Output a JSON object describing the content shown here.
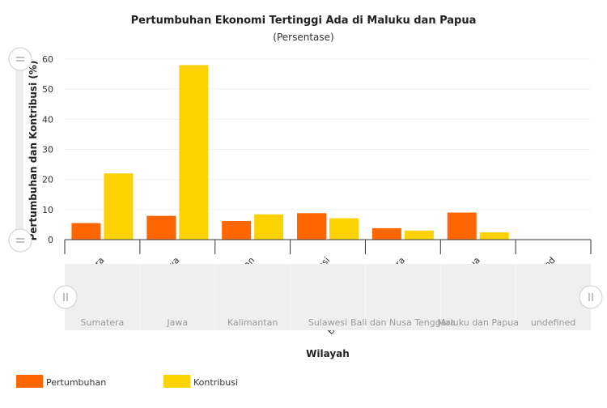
{
  "chart_data": {
    "type": "bar",
    "title": "Pertumbuhan Ekonomi Tertinggi Ada di Maluku dan Papua",
    "subtitle": "(Persentase)",
    "xlabel": "Wilayah",
    "ylabel": "Pertumbuhan dan Kontribusi (%)",
    "ylim": [
      0,
      60
    ],
    "yticks": [
      0,
      10,
      20,
      30,
      40,
      50,
      60
    ],
    "grid": true,
    "legend_position": "bottom-left",
    "categories": [
      "Sumatera",
      "Jawa",
      "Kalimantan",
      "Sulawesi",
      "Bali dan Nusa Tenggara",
      "Maluku dan Papua",
      "undefined"
    ],
    "series": [
      {
        "name": "Pertumbuhan",
        "color": "#FF6600",
        "values": [
          5.5,
          7.9,
          6.2,
          8.8,
          3.8,
          9.0,
          null
        ]
      },
      {
        "name": "Kontribusi",
        "color": "#FCD202",
        "values": [
          22.0,
          58.0,
          8.4,
          7.1,
          3.0,
          2.4,
          null
        ]
      }
    ]
  },
  "controls": {
    "top_handle_icon": "drag-handle-icon",
    "bottom_handle_icon": "drag-handle-icon",
    "left_handle_icon": "drag-handle-icon",
    "right_handle_icon": "drag-handle-icon"
  }
}
